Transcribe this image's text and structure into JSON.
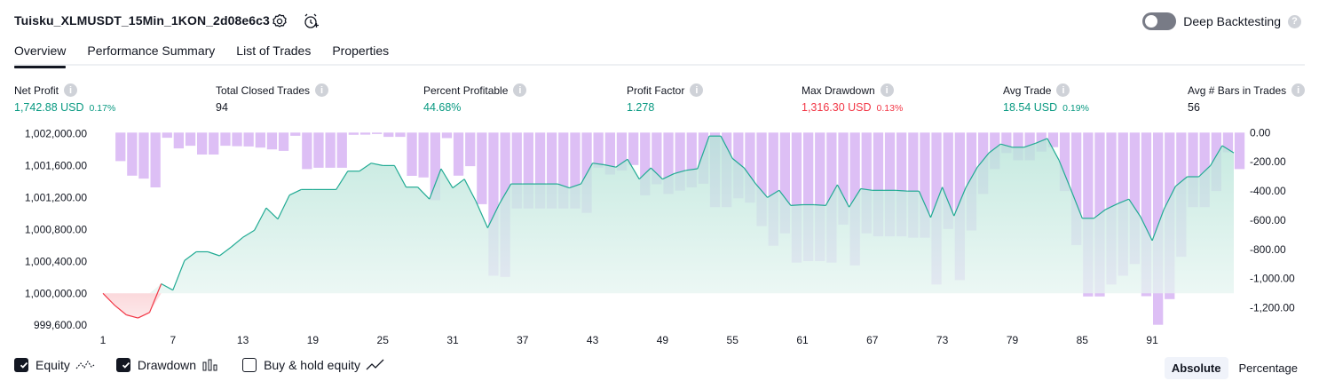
{
  "header": {
    "title": "Tuisku_XLMUSDT_15Min_1KON_2d08e6c3",
    "deep_backtesting_label": "Deep Backtesting",
    "deep_backtesting_on": false
  },
  "tabs": [
    {
      "label": "Overview",
      "active": true
    },
    {
      "label": "Performance Summary",
      "active": false
    },
    {
      "label": "List of Trades",
      "active": false
    },
    {
      "label": "Properties",
      "active": false
    }
  ],
  "metrics": [
    {
      "label": "Net Profit",
      "value": "1,742.88 USD",
      "pct": "0.17%",
      "tone": "pos"
    },
    {
      "label": "Total Closed Trades",
      "value": "94",
      "pct": "",
      "tone": "neutral"
    },
    {
      "label": "Percent Profitable",
      "value": "44.68%",
      "pct": "",
      "tone": "pos"
    },
    {
      "label": "Profit Factor",
      "value": "1.278",
      "pct": "",
      "tone": "pos"
    },
    {
      "label": "Max Drawdown",
      "value": "1,316.30 USD",
      "pct": "0.13%",
      "tone": "neg"
    },
    {
      "label": "Avg Trade",
      "value": "18.54 USD",
      "pct": "0.19%",
      "tone": "pos"
    },
    {
      "label": "Avg # Bars in Trades",
      "value": "56",
      "pct": "",
      "tone": "neutral"
    }
  ],
  "legend": {
    "equity_label": "Equity",
    "equity_checked": true,
    "drawdown_label": "Drawdown",
    "drawdown_checked": true,
    "buyhold_label": "Buy & hold equity",
    "buyhold_checked": false
  },
  "modes": {
    "absolute": "Absolute",
    "percentage": "Percentage",
    "active": "absolute"
  },
  "colors": {
    "positive": "#089981",
    "negative": "#f23645",
    "equity_line": "#22ab94",
    "equity_fill": "#bfe7dc",
    "drawdown_fill": "#d7b4f3",
    "text": "#131722"
  },
  "chart_data": {
    "type": "area",
    "x_ticks": [
      "1",
      "7",
      "13",
      "19",
      "25",
      "31",
      "37",
      "43",
      "49",
      "55",
      "61",
      "67",
      "73",
      "79",
      "85",
      "91"
    ],
    "left_axis": {
      "ticks": [
        "1,002,000.00",
        "1,001,600.00",
        "1,001,200.00",
        "1,000,800.00",
        "1,000,400.00",
        "1,000,000.00",
        "999,600.00"
      ],
      "range": [
        999580,
        1002050
      ]
    },
    "right_axis": {
      "ticks": [
        "0.00",
        "-200.00",
        "-400.00",
        "-600.00",
        "-800.00",
        "-1,000.00",
        "-1,200.00"
      ],
      "range": [
        -1330,
        20
      ]
    },
    "series": [
      {
        "name": "Equity",
        "values": [
          1000000,
          999850,
          999730,
          999690,
          999760,
          1000120,
          1000040,
          1000410,
          1000520,
          1000520,
          1000470,
          1000580,
          1000700,
          1000790,
          1001070,
          1000930,
          1001230,
          1001300,
          1001300,
          1001300,
          1001300,
          1001530,
          1001530,
          1001630,
          1001600,
          1001600,
          1001330,
          1001330,
          1001180,
          1001560,
          1001320,
          1001430,
          1001150,
          1000820,
          1001120,
          1001370,
          1001370,
          1001370,
          1001370,
          1001370,
          1001320,
          1001370,
          1001630,
          1001610,
          1001580,
          1001680,
          1001430,
          1001570,
          1001430,
          1001500,
          1001540,
          1001560,
          1001970,
          1001970,
          1001690,
          1001570,
          1001370,
          1001200,
          1001290,
          1001100,
          1001110,
          1001110,
          1001100,
          1001360,
          1001080,
          1001310,
          1001290,
          1001290,
          1001290,
          1001280,
          1001280,
          1000950,
          1001330,
          1000970,
          1001320,
          1001580,
          1001760,
          1001870,
          1001830,
          1001830,
          1001880,
          1001940,
          1001670,
          1001310,
          1000940,
          1000940,
          1001050,
          1001120,
          1001180,
          1000960,
          1000660,
          1001050,
          1001340,
          1001460,
          1001460,
          1001600,
          1001850,
          1001760
        ]
      },
      {
        "name": "Drawdown",
        "values": [
          0,
          -195,
          -295,
          -315,
          -375,
          -35,
          -108,
          -90,
          -150,
          -150,
          -90,
          -93,
          -95,
          -103,
          -115,
          -125,
          -22,
          -250,
          -241,
          -241,
          -241,
          -15,
          -14,
          -10,
          -29,
          -29,
          -296,
          -307,
          -463,
          -38,
          -295,
          -230,
          -490,
          -980,
          -988,
          -520,
          -520,
          -520,
          -520,
          -520,
          -520,
          -550,
          -240,
          -287,
          -260,
          -222,
          -430,
          -354,
          -420,
          -397,
          -375,
          -350,
          -510,
          -510,
          -450,
          -480,
          -640,
          -775,
          -690,
          -890,
          -880,
          -880,
          -890,
          -630,
          -910,
          -690,
          -710,
          -710,
          -710,
          -720,
          -720,
          -1040,
          -660,
          -1010,
          -670,
          -420,
          -250,
          -140,
          -190,
          -190,
          -130,
          -100,
          -400,
          -770,
          -1122,
          -1122,
          -1040,
          -980,
          -900,
          -1120,
          -1316,
          -1140,
          -850,
          -510,
          -510,
          -400,
          -135,
          -250
        ]
      }
    ],
    "title": "",
    "xlabel": "",
    "ylabel": ""
  }
}
